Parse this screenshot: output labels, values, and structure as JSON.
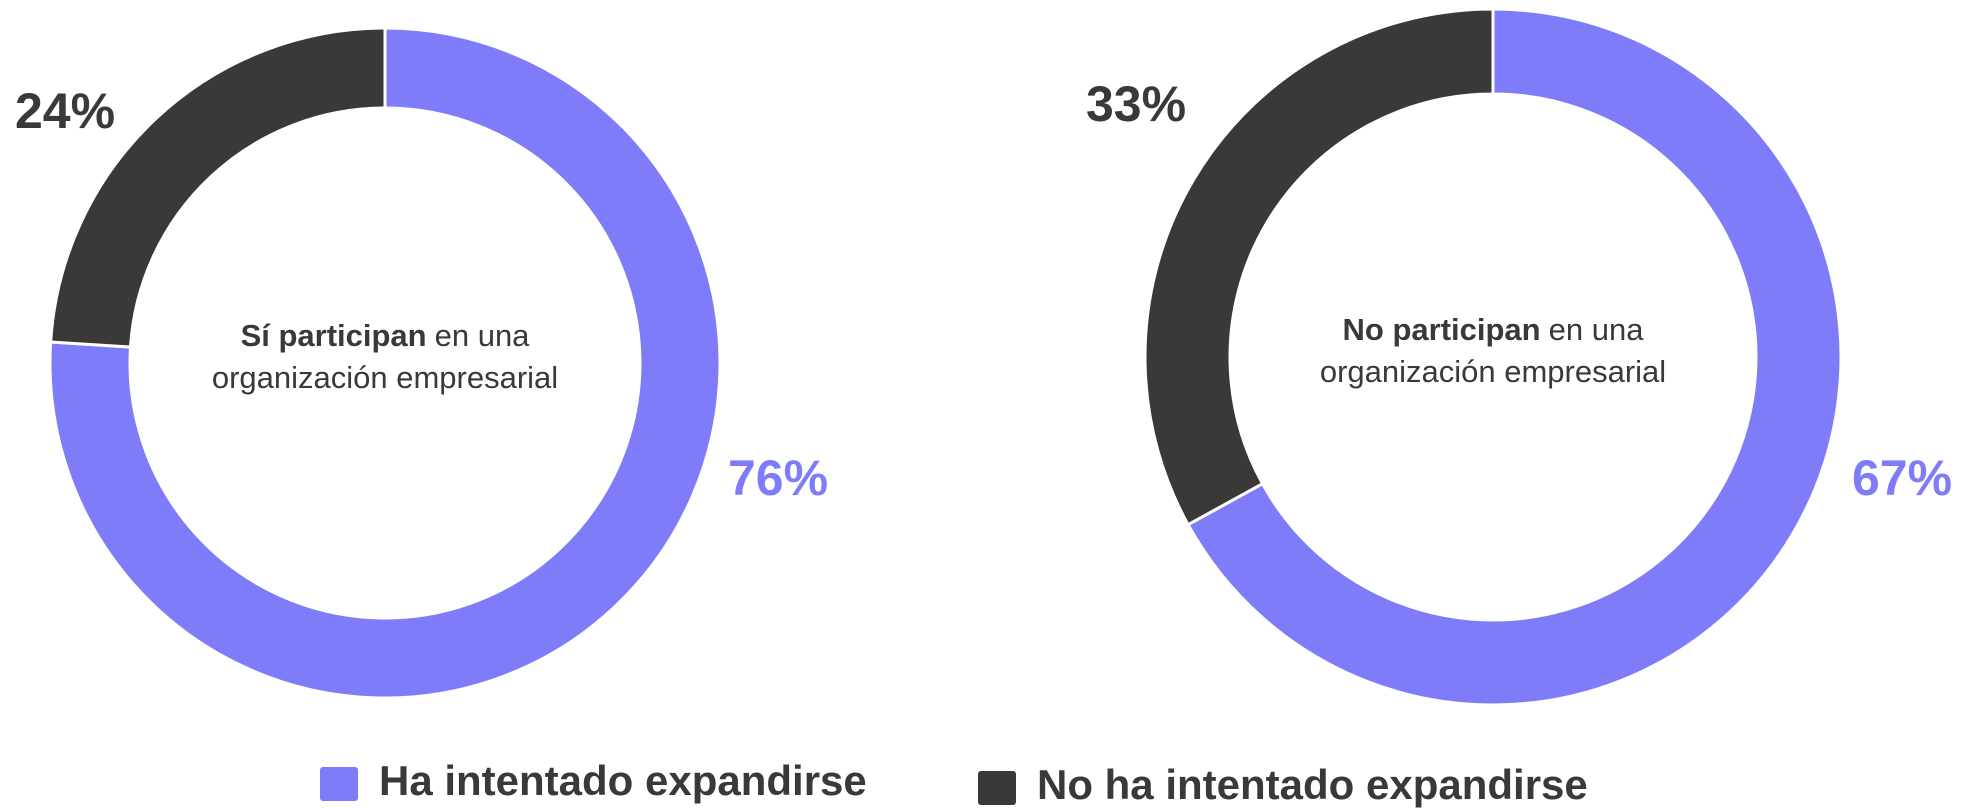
{
  "chart_data": [
    {
      "type": "pie",
      "donut": true,
      "center_label": {
        "bold": "Sí participan",
        "text": "en una",
        "line2": "organización empresarial"
      },
      "categories": [
        "Ha intentado expandirse",
        "No ha intentado expandirse"
      ],
      "values": [
        76,
        24
      ],
      "value_labels": [
        "76%",
        "24%"
      ],
      "colors": [
        "#7f7cfa",
        "#3a3938"
      ]
    },
    {
      "type": "pie",
      "donut": true,
      "center_label": {
        "bold": "No participan",
        "text": "en una",
        "line2": "organización empresarial"
      },
      "categories": [
        "Ha intentado expandirse",
        "No ha intentado expandirse"
      ],
      "values": [
        67,
        33
      ],
      "value_labels": [
        "67%",
        "33%"
      ],
      "colors": [
        "#7f7cfa",
        "#3a3938"
      ]
    }
  ]
}
